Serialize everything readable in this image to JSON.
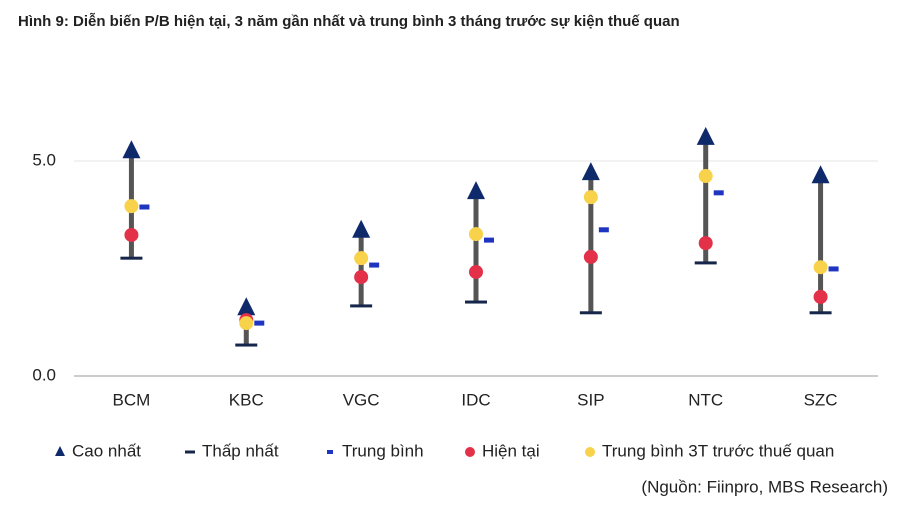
{
  "chart_data": {
    "type": "range-dot",
    "title": "Hình 9: Diễn biến P/B hiện tại, 3 năm gần nhất và trung bình 3 tháng trước sự kiện thuế quan",
    "source": "(Nguồn: Fiinpro, MBS Research)",
    "categories": [
      "BCM",
      "KBC",
      "VGC",
      "IDC",
      "SIP",
      "NTC",
      "SZC"
    ],
    "series": [
      {
        "name": "Cao nhất",
        "color": "#0f2a6b",
        "marker": "triangle",
        "values": [
          5.25,
          1.6,
          3.4,
          4.3,
          4.74,
          5.56,
          4.67
        ]
      },
      {
        "name": "Thấp nhất",
        "color": "#15264a",
        "marker": "dash",
        "values": [
          2.74,
          0.72,
          1.63,
          1.72,
          1.47,
          2.63,
          1.47
        ]
      },
      {
        "name": "Trung bình",
        "color": "#1f35c2",
        "marker": "small-dash",
        "values": [
          3.93,
          1.23,
          2.58,
          3.16,
          3.4,
          4.26,
          2.49
        ]
      },
      {
        "name": "Hiện tại",
        "color": "#e23148",
        "marker": "circle",
        "values": [
          3.28,
          1.3,
          2.3,
          2.42,
          2.77,
          3.09,
          1.84
        ]
      },
      {
        "name": "Trung bình 3T trước thuế quan",
        "color": "#f8d24a",
        "marker": "circle",
        "values": [
          3.95,
          1.23,
          2.74,
          3.3,
          4.16,
          4.65,
          2.53
        ]
      }
    ],
    "range_color": "#555555",
    "ylim": [
      0,
      6
    ],
    "yticks": [
      {
        "value": 0,
        "label": "0.0"
      },
      {
        "value": 5,
        "label": "5.0"
      }
    ],
    "grid": true
  }
}
